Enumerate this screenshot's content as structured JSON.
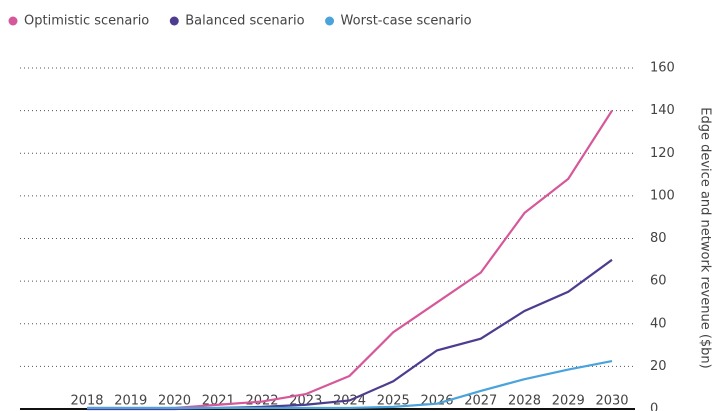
{
  "chart_data": {
    "type": "line",
    "x": [
      2018,
      2019,
      2020,
      2021,
      2022,
      2023,
      2024,
      2025,
      2026,
      2027,
      2028,
      2029,
      2030
    ],
    "series": [
      {
        "name": "Optimistic scenario",
        "color": "#d6589a",
        "values": [
          0.5,
          0.5,
          0.5,
          2,
          3.5,
          7,
          15.5,
          36,
          50,
          64,
          92,
          108,
          140
        ]
      },
      {
        "name": "Balanced scenario",
        "color": "#4e3d8f",
        "values": [
          0,
          0,
          0,
          0.5,
          1,
          2,
          4,
          13,
          27.5,
          33,
          46,
          55,
          70
        ]
      },
      {
        "name": "Worst-case scenario",
        "color": "#4aa3db",
        "values": [
          0.5,
          0.5,
          0.5,
          0.5,
          0.5,
          0.5,
          0.5,
          1,
          2.5,
          8.5,
          14,
          18.5,
          22.5
        ]
      }
    ],
    "y_label": "Edge device and network revenue ($bn)",
    "xlim": [
      2018,
      2030
    ],
    "ylim": [
      0,
      160
    ],
    "yticks": [
      0,
      20,
      40,
      60,
      80,
      100,
      120,
      140,
      160
    ],
    "grid": true,
    "legend": "top-left"
  }
}
